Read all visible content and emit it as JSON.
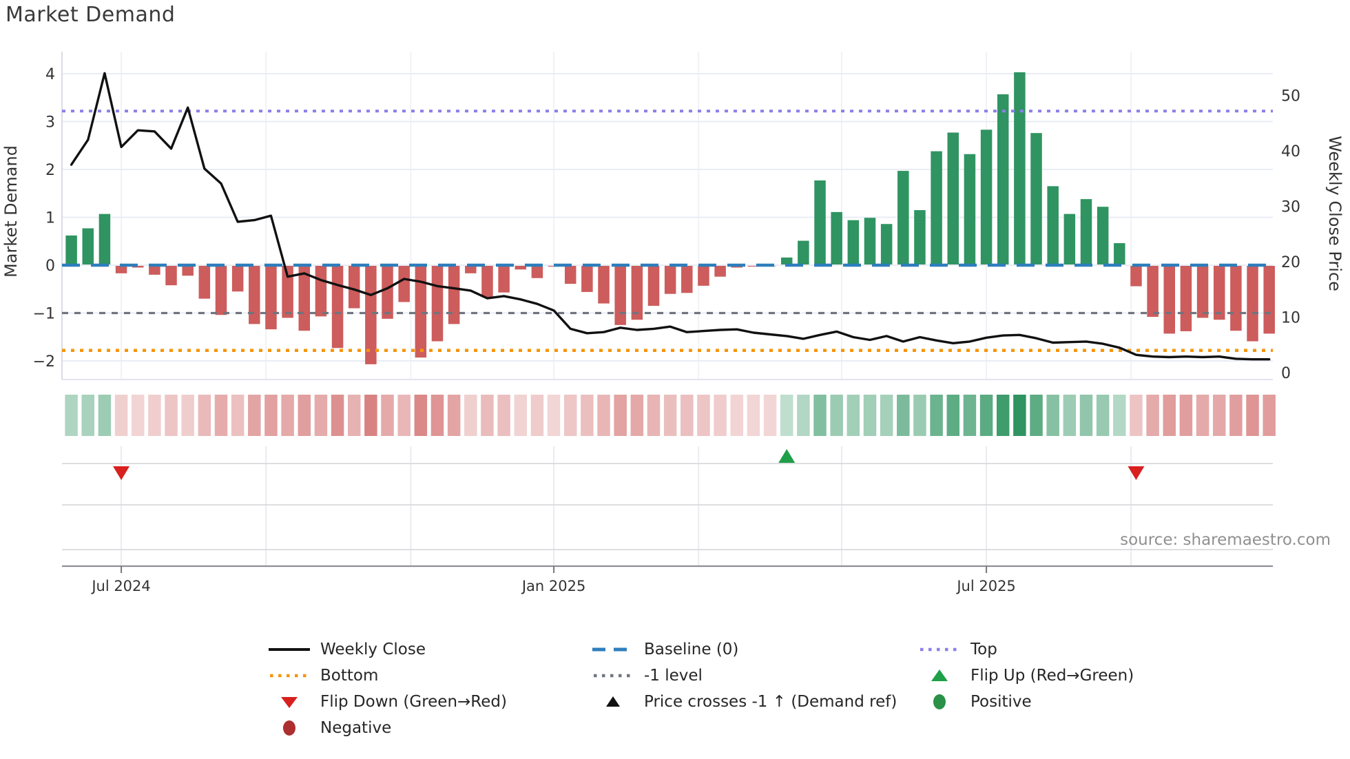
{
  "title": "Market Demand",
  "source_note": "source: sharemaestro.com",
  "axes": {
    "left_label": "Market Demand",
    "right_label": "Weekly Close Price",
    "left_ticks": [
      "4",
      "3",
      "2",
      "1",
      "0",
      "−1",
      "−2"
    ],
    "left_tick_values": [
      4,
      3,
      2,
      1,
      0,
      -1,
      -2
    ],
    "right_ticks": [
      "50",
      "40",
      "30",
      "20",
      "10",
      "0"
    ],
    "right_tick_values": [
      50,
      40,
      30,
      20,
      10,
      0
    ],
    "x_ticks": [
      {
        "label": "Jul 2024",
        "week": 4
      },
      {
        "label": "Jan 2025",
        "week": 30
      },
      {
        "label": "Jul 2025",
        "week": 56
      }
    ],
    "minor_gridline_weeks": [
      4,
      12.7,
      21.4,
      30,
      38.7,
      47.3,
      56,
      64.7
    ]
  },
  "chart_data": {
    "type": "bar",
    "x_unit": "week",
    "weeks": 73,
    "title": "Market Demand",
    "left_ylim": [
      -2.3,
      4.45
    ],
    "right_ylim": [
      0,
      56
    ],
    "grid": true,
    "series": [
      {
        "name": "Market Demand",
        "type": "bar",
        "axis": "left",
        "values": [
          0.62,
          0.77,
          1.07,
          -0.17,
          -0.05,
          -0.2,
          -0.42,
          -0.22,
          -0.7,
          -1.04,
          -0.55,
          -1.23,
          -1.34,
          -1.1,
          -1.37,
          -1.07,
          -1.73,
          -0.9,
          -2.07,
          -1.12,
          -0.77,
          -1.93,
          -1.59,
          -1.23,
          -0.17,
          -0.67,
          -0.57,
          -0.09,
          -0.27,
          -0.03,
          -0.39,
          -0.56,
          -0.8,
          -1.25,
          -1.14,
          -0.85,
          -0.6,
          -0.58,
          -0.43,
          -0.24,
          -0.05,
          -0.03,
          -0.02,
          0.16,
          0.51,
          1.77,
          1.11,
          0.94,
          0.99,
          0.86,
          1.97,
          1.15,
          2.38,
          2.77,
          2.32,
          2.83,
          3.57,
          4.03,
          2.76,
          1.65,
          1.07,
          1.38,
          1.22,
          0.46,
          -0.44,
          -1.08,
          -1.43,
          -1.38,
          -1.1,
          -1.14,
          -1.37,
          -1.59,
          -1.43
        ]
      },
      {
        "name": "Weekly Close",
        "type": "line",
        "axis": "right",
        "values": [
          37.5,
          42,
          54,
          40.7,
          43.7,
          43.5,
          40.4,
          47.8,
          36.8,
          34.1,
          27.2,
          27.5,
          28.3,
          17.3,
          17.9,
          16.7,
          15.8,
          15,
          14,
          15.2,
          16.9,
          16.4,
          15.6,
          15.2,
          14.8,
          13.4,
          13.8,
          13.2,
          12.4,
          11.2,
          7.9,
          7.1,
          7.3,
          8.1,
          7.7,
          7.9,
          8.3,
          7.3,
          7.5,
          7.7,
          7.8,
          7.2,
          6.9,
          6.6,
          6.1,
          6.8,
          7.4,
          6.4,
          5.9,
          6.6,
          5.6,
          6.4,
          5.8,
          5.3,
          5.6,
          6.3,
          6.7,
          6.8,
          6.2,
          5.4,
          5.5,
          5.6,
          5.2,
          4.5,
          3.2,
          2.9,
          2.8,
          2.9,
          2.8,
          2.9,
          2.5,
          2.4,
          2.4
        ]
      }
    ],
    "reference_lines": [
      {
        "name": "Top",
        "value": 3.22,
        "style": "dotted"
      },
      {
        "name": "Baseline (0)",
        "value": 0,
        "style": "dashed"
      },
      {
        "name": "-1 level",
        "value": -1,
        "style": "dashed-small"
      },
      {
        "name": "Bottom",
        "value": -1.78,
        "style": "dotted"
      }
    ],
    "markers": {
      "flip_up_weeks": [
        44
      ],
      "flip_down_weeks": [
        4,
        65
      ],
      "price_cross_weeks": []
    },
    "heatmap_strip": "intensity strip mirrors Market Demand bar values (green positive, red negative)"
  },
  "legend": {
    "columns": [
      {
        "items": [
          {
            "label": "Weekly Close",
            "marker": "line-black"
          },
          {
            "label": "Bottom",
            "marker": "dotted-orange"
          },
          {
            "label": "Flip Down (Green→Red)",
            "marker": "triangle-down-red"
          },
          {
            "label": "Negative",
            "marker": "circle-darkred"
          }
        ]
      },
      {
        "items": [
          {
            "label": "Baseline (0)",
            "marker": "dash-blue"
          },
          {
            "label": "-1 level",
            "marker": "dotted-gray"
          },
          {
            "label": "Price crosses -1 ↑ (Demand ref)",
            "marker": "triangle-up-black"
          }
        ]
      },
      {
        "items": [
          {
            "label": "Top",
            "marker": "dotted-purple"
          },
          {
            "label": "Flip Up (Red→Green)",
            "marker": "triangle-up-green"
          },
          {
            "label": "Positive",
            "marker": "circle-green"
          }
        ]
      }
    ]
  },
  "colors": {
    "bar_positive": "#2f9461",
    "bar_negative": "#cd5c5c",
    "line": "#111111",
    "baseline": "#2e7ebc",
    "top": "#8b7fe8",
    "bottom": "#f5950a",
    "minus_one": "#70747e",
    "flip_up": "#1fa048",
    "flip_down": "#d8201e",
    "positive_dot": "#2a9147",
    "negative_dot": "#ad2f2f",
    "grid": "#e9ecf4",
    "text": "#333333",
    "source": "#909090"
  }
}
